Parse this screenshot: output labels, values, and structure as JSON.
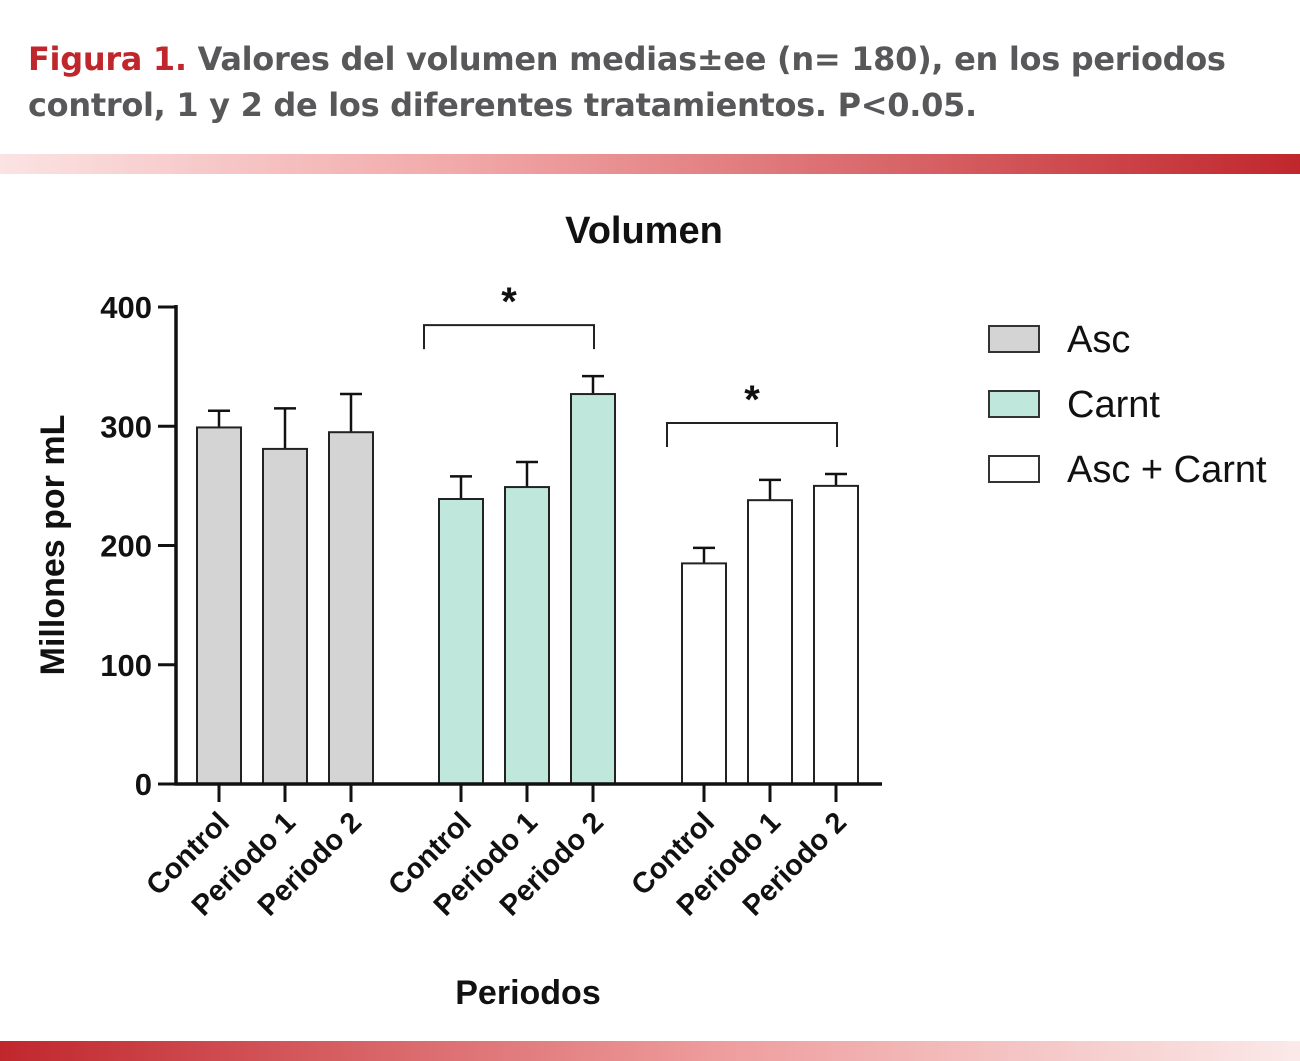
{
  "caption": {
    "figure_label": "Figura 1.",
    "text": "Valores del volumen medias±ee (n= 180), en los periodos control, 1 y 2 de los diferentes tratamientos. P<0.05."
  },
  "colors": {
    "brand_red": "#c0272d",
    "caption_gray": "#58585a",
    "asc_fill": "#d4d4d4",
    "carnt_fill": "#c0e7db",
    "asc_carnt_fill": "#ffffff"
  },
  "chart_data": {
    "type": "bar",
    "title": "Volumen",
    "xlabel": "Periodos",
    "ylabel": "Millones por mL",
    "ylim": [
      0,
      400
    ],
    "yticks": [
      0,
      100,
      200,
      300,
      400
    ],
    "categories": [
      "Control",
      "Periodo 1",
      "Periodo 2"
    ],
    "legend_position": "top-right",
    "series": [
      {
        "name": "Asc",
        "color": "#d4d4d4",
        "values": [
          299,
          281,
          295
        ],
        "errors": [
          14,
          34,
          32
        ]
      },
      {
        "name": "Carnt",
        "color": "#c0e7db",
        "values": [
          239,
          249,
          327
        ],
        "errors": [
          19,
          21,
          15
        ]
      },
      {
        "name": "Asc + Carnt",
        "color": "#ffffff",
        "values": [
          185,
          238,
          250
        ],
        "errors": [
          13,
          17,
          10
        ]
      }
    ],
    "annotations": [
      {
        "group": 1,
        "text": "*"
      },
      {
        "group": 2,
        "text": "*"
      }
    ]
  }
}
